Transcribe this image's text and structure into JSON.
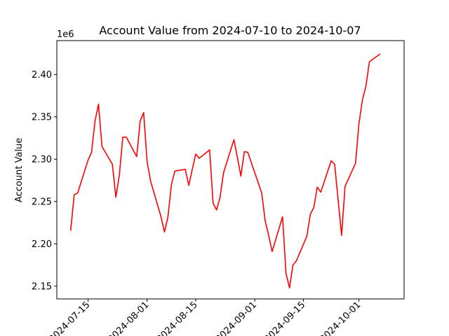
{
  "chart_data": {
    "type": "line",
    "title": "Account Value from 2024-07-10 to 2024-10-07",
    "xlabel": "",
    "ylabel": "Account Value",
    "y_offset_label": "1e6",
    "x_range": [
      "2024-07-06",
      "2024-10-14"
    ],
    "ylim": [
      2.135,
      2.44
    ],
    "x_ticks": [
      "2024-07-15",
      "2024-08-01",
      "2024-08-15",
      "2024-09-01",
      "2024-09-15",
      "2024-10-01"
    ],
    "y_ticks": [
      2.15,
      2.2,
      2.25,
      2.3,
      2.35,
      2.4
    ],
    "y_tick_labels": [
      "2.15",
      "2.20",
      "2.25",
      "2.30",
      "2.35",
      "2.40"
    ],
    "grid": false,
    "legend": "none",
    "series": [
      {
        "color": "#ff0000",
        "x": [
          "2024-07-10",
          "2024-07-11",
          "2024-07-12",
          "2024-07-15",
          "2024-07-16",
          "2024-07-17",
          "2024-07-18",
          "2024-07-19",
          "2024-07-22",
          "2024-07-23",
          "2024-07-24",
          "2024-07-25",
          "2024-07-26",
          "2024-07-29",
          "2024-07-30",
          "2024-07-31",
          "2024-08-01",
          "2024-08-02",
          "2024-08-05",
          "2024-08-06",
          "2024-08-07",
          "2024-08-08",
          "2024-08-09",
          "2024-08-12",
          "2024-08-13",
          "2024-08-14",
          "2024-08-15",
          "2024-08-16",
          "2024-08-19",
          "2024-08-20",
          "2024-08-21",
          "2024-08-22",
          "2024-08-23",
          "2024-08-26",
          "2024-08-27",
          "2024-08-28",
          "2024-08-29",
          "2024-08-30",
          "2024-09-03",
          "2024-09-04",
          "2024-09-05",
          "2024-09-06",
          "2024-09-09",
          "2024-09-10",
          "2024-09-11",
          "2024-09-12",
          "2024-09-13",
          "2024-09-16",
          "2024-09-17",
          "2024-09-18",
          "2024-09-19",
          "2024-09-20",
          "2024-09-23",
          "2024-09-24",
          "2024-09-25",
          "2024-09-26",
          "2024-09-27",
          "2024-09-30",
          "2024-10-01",
          "2024-10-02",
          "2024-10-03",
          "2024-10-04",
          "2024-10-07"
        ],
        "y": [
          2.216,
          2.258,
          2.26,
          2.299,
          2.308,
          2.345,
          2.365,
          2.315,
          2.294,
          2.255,
          2.281,
          2.326,
          2.326,
          2.303,
          2.345,
          2.355,
          2.297,
          2.274,
          2.232,
          2.214,
          2.232,
          2.27,
          2.286,
          2.288,
          2.269,
          2.288,
          2.306,
          2.301,
          2.311,
          2.248,
          2.24,
          2.255,
          2.284,
          2.323,
          2.302,
          2.28,
          2.309,
          2.308,
          2.26,
          2.227,
          2.21,
          2.191,
          2.232,
          2.165,
          2.148,
          2.175,
          2.18,
          2.209,
          2.235,
          2.243,
          2.267,
          2.261,
          2.298,
          2.294,
          2.252,
          2.21,
          2.268,
          2.295,
          2.342,
          2.37,
          2.386,
          2.415,
          2.424
        ]
      }
    ]
  }
}
